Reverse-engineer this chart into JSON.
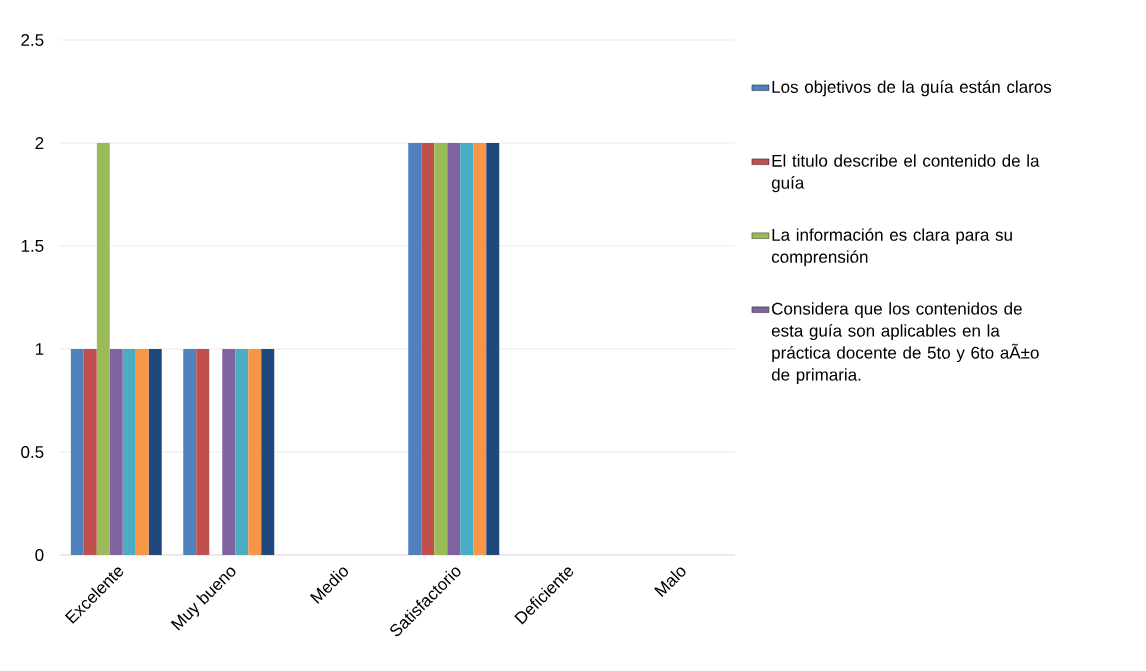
{
  "chart_data": {
    "type": "bar",
    "categories": [
      "Excelente",
      "Muy bueno",
      "Medio",
      "Satisfactorio",
      "Deficiente",
      "Malo"
    ],
    "series": [
      {
        "name": "Los objetivos de la guía están claros",
        "color": "#4f81bd",
        "values": [
          1,
          1,
          0,
          2,
          0,
          0
        ]
      },
      {
        "name": "El titulo describe el contenido de la guía",
        "color": "#c0504d",
        "values": [
          1,
          1,
          0,
          2,
          0,
          0
        ]
      },
      {
        "name": "La información es clara para su comprensión",
        "color": "#9bbb59",
        "values": [
          2,
          0,
          0,
          2,
          0,
          0
        ]
      },
      {
        "name": "Considera que los contenidos de esta guía son aplicables en la práctica docente de 5to y 6to aÃ±o de primaria.",
        "color": "#8064a2",
        "values": [
          1,
          1,
          0,
          2,
          0,
          0
        ]
      },
      {
        "color": "#4bacc6",
        "values": [
          1,
          1,
          0,
          2,
          0,
          0
        ]
      },
      {
        "color": "#f79646",
        "values": [
          1,
          1,
          0,
          2,
          0,
          0
        ]
      },
      {
        "color": "#1f497d",
        "values": [
          1,
          1,
          0,
          2,
          0,
          0
        ]
      }
    ],
    "ylim": [
      0,
      2.5
    ],
    "yticks": [
      0,
      0.5,
      1,
      1.5,
      2,
      2.5
    ],
    "grid": "y",
    "legend": "right"
  }
}
